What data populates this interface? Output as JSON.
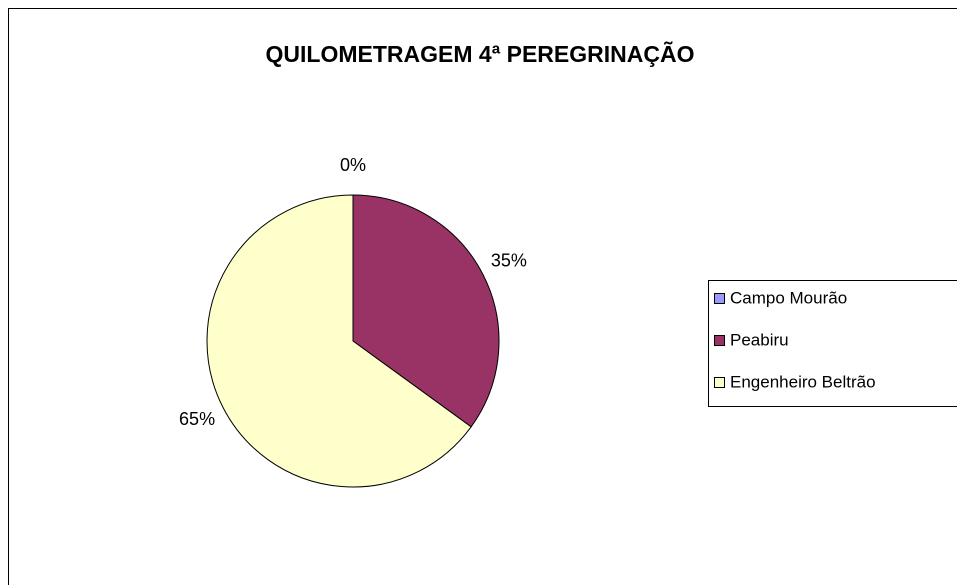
{
  "chart_data": {
    "type": "pie",
    "title": "QUILOMETRAGEM 4ª PEREGRINAÇÃO",
    "categories": [
      "Campo Mourão",
      "Peabiru",
      "Engenheiro Beltrão"
    ],
    "values": [
      0,
      35,
      65
    ],
    "value_labels": [
      "0%",
      "35%",
      "65%"
    ],
    "colors": [
      "#9999ff",
      "#993366",
      "#ffffcc"
    ],
    "legend": "right"
  }
}
